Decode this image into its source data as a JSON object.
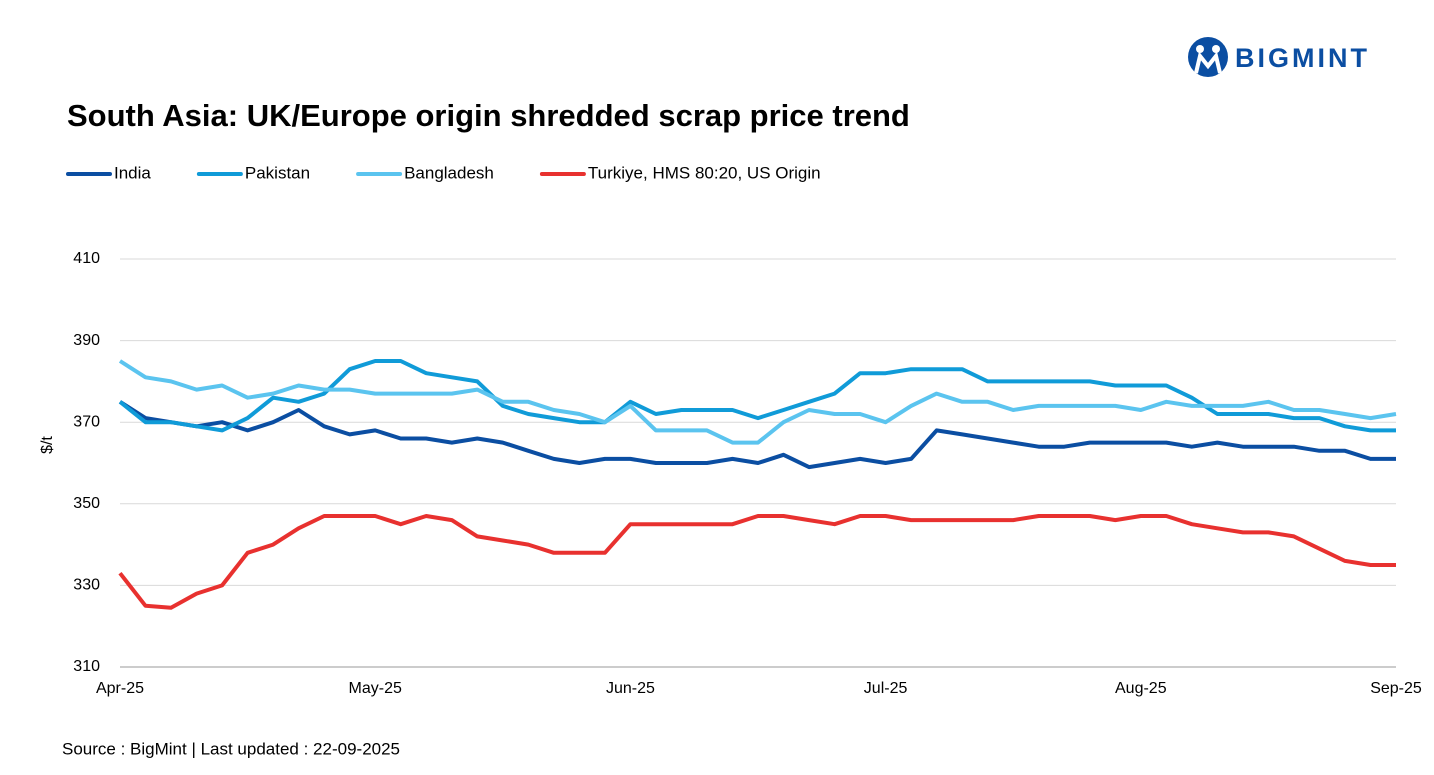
{
  "chart_data": {
    "type": "line",
    "title": "South Asia: UK/Europe origin shredded scrap price trend",
    "brand": "BIGMINT",
    "ylabel": "$/t",
    "source": "Source : BigMint | Last updated : 22-09-2025",
    "categories": [
      "Apr-25",
      null,
      null,
      null,
      null,
      null,
      null,
      null,
      null,
      null,
      "May-25",
      null,
      null,
      null,
      null,
      null,
      null,
      null,
      null,
      null,
      "Jun-25",
      null,
      null,
      null,
      null,
      null,
      null,
      null,
      null,
      null,
      "Jul-25",
      null,
      null,
      null,
      null,
      null,
      null,
      null,
      null,
      null,
      "Aug-25",
      null,
      null,
      null,
      null,
      null,
      null,
      null,
      null,
      null,
      "Sep-25"
    ],
    "ylim": [
      310,
      410
    ],
    "yticks": [
      310,
      330,
      350,
      370,
      390,
      410
    ],
    "grid": true,
    "legend": "top",
    "series": [
      {
        "name": "India",
        "color": "#0b4ea2",
        "values": [
          375,
          371,
          370,
          369,
          370,
          368,
          370,
          373,
          369,
          367,
          368,
          366,
          366,
          365,
          366,
          365,
          363,
          361,
          360,
          361,
          361,
          360,
          360,
          360,
          361,
          360,
          362,
          359,
          360,
          361,
          360,
          361,
          368,
          367,
          366,
          365,
          364,
          364,
          365,
          365,
          365,
          365,
          364,
          365,
          364,
          364,
          364,
          363,
          363,
          361,
          361
        ]
      },
      {
        "name": "Pakistan",
        "color": "#109bd8",
        "values": [
          375,
          370,
          370,
          369,
          368,
          371,
          376,
          375,
          377,
          383,
          385,
          385,
          382,
          381,
          380,
          374,
          372,
          371,
          370,
          370,
          375,
          372,
          373,
          373,
          373,
          371,
          373,
          375,
          377,
          382,
          382,
          383,
          383,
          383,
          380,
          380,
          380,
          380,
          380,
          379,
          379,
          379,
          376,
          372,
          372,
          372,
          371,
          371,
          369,
          368,
          368
        ]
      },
      {
        "name": "Bangladesh",
        "color": "#5bc4ef",
        "values": [
          385,
          381,
          380,
          378,
          379,
          376,
          377,
          379,
          378,
          378,
          377,
          377,
          377,
          377,
          378,
          375,
          375,
          373,
          372,
          370,
          374,
          368,
          368,
          368,
          365,
          365,
          370,
          373,
          372,
          372,
          370,
          374,
          377,
          375,
          375,
          373,
          374,
          374,
          374,
          374,
          373,
          375,
          374,
          374,
          374,
          375,
          373,
          373,
          372,
          371,
          372
        ]
      },
      {
        "name": "Turkiye, HMS 80:20, US Origin",
        "color": "#e8312f",
        "values": [
          333,
          325,
          324.5,
          328,
          330,
          338,
          340,
          344,
          347,
          347,
          347,
          345,
          347,
          346,
          342,
          341,
          340,
          338,
          338,
          338,
          345,
          345,
          345,
          345,
          345,
          347,
          347,
          346,
          345,
          347,
          347,
          346,
          346,
          346,
          346,
          346,
          347,
          347,
          347,
          346,
          347,
          347,
          345,
          344,
          343,
          343,
          342,
          339,
          336,
          335,
          335
        ]
      }
    ]
  }
}
